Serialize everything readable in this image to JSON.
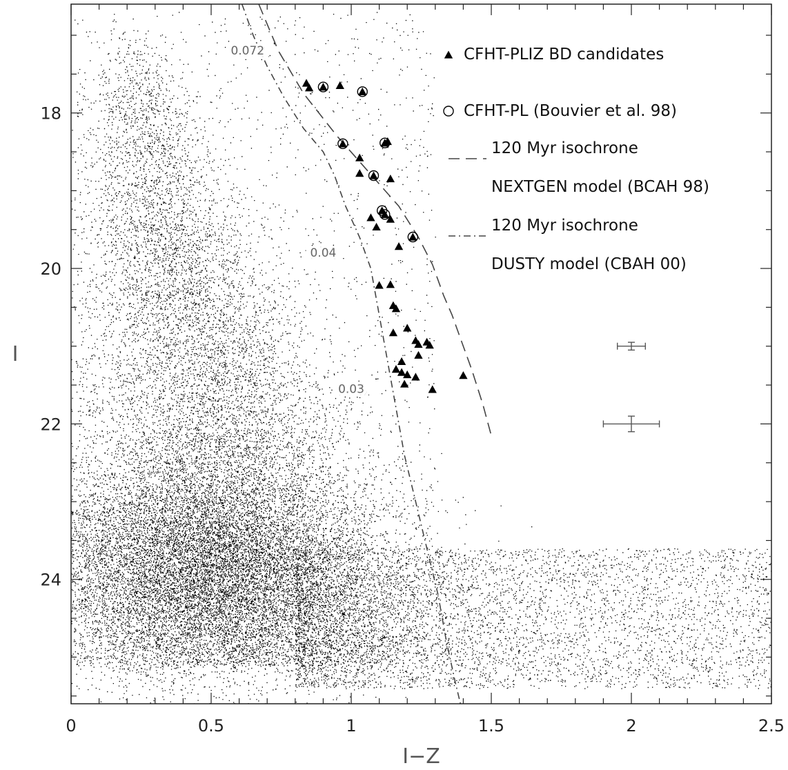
{
  "chart_data": {
    "type": "scatter",
    "title": "",
    "xlabel": "I−Z",
    "ylabel": "I",
    "xlim": [
      0,
      2.5
    ],
    "ylim": [
      25.6,
      16.6
    ],
    "x_ticks": [
      0,
      0.5,
      1,
      1.5,
      2,
      2.5
    ],
    "x_tick_labels": [
      "0",
      "0.5",
      "1",
      "1.5",
      "2",
      "2.5"
    ],
    "y_ticks": [
      18,
      20,
      22,
      24
    ],
    "y_tick_labels": [
      "18",
      "20",
      "22",
      "24"
    ],
    "grid": false,
    "legend_position": "top-right",
    "legend": [
      {
        "marker": "filled-triangle",
        "lines": [
          "CFHT-PLIZ BD candidates"
        ]
      },
      {
        "marker": "open-circle",
        "lines": [
          "CFHT-PL (Bouvier et al. 98)"
        ]
      },
      {
        "marker": "dashed-line",
        "lines": [
          "120 Myr  isochrone",
          "NEXTGEN model (BCAH 98)"
        ]
      },
      {
        "marker": "dash-dot-line",
        "lines": [
          "120 Myr  isochrone",
          "DUSTY model (CBAH 00)"
        ]
      }
    ],
    "series": [
      {
        "name": "CFHT-PLIZ BD candidates",
        "marker": "triangle",
        "points": [
          [
            0.84,
            17.62
          ],
          [
            0.85,
            17.68
          ],
          [
            0.9,
            17.67
          ],
          [
            0.96,
            17.65
          ],
          [
            1.04,
            17.73
          ],
          [
            0.97,
            18.4
          ],
          [
            1.12,
            18.39
          ],
          [
            1.13,
            18.37
          ],
          [
            1.03,
            18.58
          ],
          [
            1.03,
            18.78
          ],
          [
            1.08,
            18.81
          ],
          [
            1.14,
            18.85
          ],
          [
            1.11,
            19.26
          ],
          [
            1.12,
            19.31
          ],
          [
            1.07,
            19.35
          ],
          [
            1.09,
            19.47
          ],
          [
            1.14,
            19.37
          ],
          [
            1.22,
            19.6
          ],
          [
            1.17,
            19.72
          ],
          [
            1.1,
            20.22
          ],
          [
            1.14,
            20.21
          ],
          [
            1.15,
            20.48
          ],
          [
            1.16,
            20.52
          ],
          [
            1.15,
            20.83
          ],
          [
            1.2,
            20.77
          ],
          [
            1.23,
            20.93
          ],
          [
            1.24,
            20.98
          ],
          [
            1.27,
            20.95
          ],
          [
            1.28,
            20.99
          ],
          [
            1.24,
            21.12
          ],
          [
            1.18,
            21.2
          ],
          [
            1.16,
            21.3
          ],
          [
            1.18,
            21.34
          ],
          [
            1.2,
            21.37
          ],
          [
            1.23,
            21.4
          ],
          [
            1.19,
            21.49
          ],
          [
            1.29,
            21.56
          ],
          [
            1.4,
            21.38
          ]
        ]
      },
      {
        "name": "CFHT-PL (Bouvier et al. 98)",
        "marker": "circle",
        "points": [
          [
            0.9,
            17.67
          ],
          [
            1.04,
            17.73
          ],
          [
            0.97,
            18.4
          ],
          [
            1.12,
            18.39
          ],
          [
            1.08,
            18.81
          ],
          [
            1.11,
            19.26
          ],
          [
            1.12,
            19.31
          ],
          [
            1.22,
            19.6
          ]
        ]
      },
      {
        "name": "120 Myr  isochrone NEXTGEN model (BCAH 98)",
        "style": "dashed",
        "points": [
          [
            0.67,
            16.6
          ],
          [
            0.74,
            17.2
          ],
          [
            0.83,
            17.75
          ],
          [
            0.95,
            18.3
          ],
          [
            1.06,
            18.75
          ],
          [
            1.17,
            19.2
          ],
          [
            1.24,
            19.6
          ],
          [
            1.29,
            19.95
          ],
          [
            1.33,
            20.35
          ],
          [
            1.36,
            20.6
          ],
          [
            1.39,
            20.9
          ],
          [
            1.43,
            21.3
          ],
          [
            1.47,
            21.75
          ],
          [
            1.5,
            22.15
          ]
        ]
      },
      {
        "name": "120 Myr  isochrone DUSTY model (CBAH 00)",
        "style": "dash-dot",
        "points": [
          [
            0.61,
            16.6
          ],
          [
            0.65,
            17.0
          ],
          [
            0.7,
            17.4
          ],
          [
            0.76,
            17.8
          ],
          [
            0.83,
            18.2
          ],
          [
            0.9,
            18.5
          ],
          [
            0.94,
            18.8
          ],
          [
            0.98,
            19.2
          ],
          [
            1.03,
            19.6
          ],
          [
            1.07,
            20.0
          ],
          [
            1.1,
            20.6
          ],
          [
            1.13,
            21.2
          ],
          [
            1.16,
            21.8
          ],
          [
            1.19,
            22.4
          ],
          [
            1.23,
            23.0
          ],
          [
            1.27,
            23.6
          ],
          [
            1.31,
            24.2
          ],
          [
            1.34,
            24.8
          ],
          [
            1.37,
            25.3
          ],
          [
            1.39,
            25.6
          ]
        ]
      }
    ],
    "mass_labels": [
      {
        "text": "0.072",
        "x": 0.63,
        "y": 17.25
      },
      {
        "text": "0.04",
        "x": 0.9,
        "y": 19.85
      },
      {
        "text": "0.03",
        "x": 1.0,
        "y": 21.6
      }
    ],
    "error_bars": [
      {
        "x": 2.0,
        "y": 21.0,
        "xerr": 0.05,
        "yerr": 0.05
      },
      {
        "x": 2.0,
        "y": 22.0,
        "xerr": 0.1,
        "yerr": 0.1
      }
    ],
    "background_field_stars": {
      "description": "dense cloud of field stars concentrated at I-Z 0.2-0.7, thickening toward I 23-25",
      "density_ridge": [
        [
          0.22,
          17.0
        ],
        [
          0.25,
          18.0
        ],
        [
          0.3,
          19.0
        ],
        [
          0.38,
          20.0
        ],
        [
          0.45,
          21.0
        ],
        [
          0.5,
          22.0
        ],
        [
          0.55,
          23.0
        ],
        [
          0.6,
          24.0
        ],
        [
          0.65,
          24.6
        ]
      ]
    },
    "colors": {
      "axes": "#222222",
      "points": "#000000",
      "background_stars": "#000000",
      "isochrone": "#444444",
      "labels": "#666666"
    }
  }
}
